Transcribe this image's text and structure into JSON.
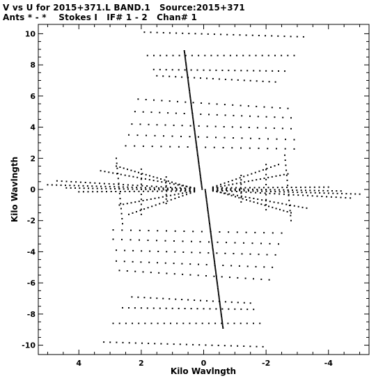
{
  "title_line1": "V vs U for 2015+371.L BAND.1   Source:2015+371",
  "title_line2": "Ants * - *    Stokes I   IF# 1 - 2   Chan# 1",
  "chart_data": {
    "type": "scatter",
    "xlabel": "Kilo Wavlngth",
    "ylabel": "Kilo Wavlngth",
    "xlim": [
      5.3,
      -5.3
    ],
    "ylim": [
      -10.6,
      10.6
    ],
    "x_reversed": true,
    "x_ticks": [
      4,
      2,
      0,
      -2,
      -4
    ],
    "y_ticks": [
      10,
      8,
      6,
      4,
      2,
      0,
      -2,
      -4,
      -6,
      -8,
      -10
    ],
    "grid": false,
    "legend": "none",
    "marker_color": "#000000",
    "tracks": [
      {
        "u0": 0.05,
        "v0": 0.02,
        "u1": 0.62,
        "v1": 8.9,
        "n": 95
      },
      {
        "u0": -0.05,
        "v0": -0.02,
        "u1": -0.62,
        "v1": -8.9,
        "n": 95
      },
      {
        "u0": 1.9,
        "v0": 10.1,
        "u1": -3.2,
        "v1": 9.8,
        "n": 26
      },
      {
        "u0": 1.8,
        "v0": 8.6,
        "u1": -2.9,
        "v1": 8.6,
        "n": 24
      },
      {
        "u0": 1.6,
        "v0": 7.7,
        "u1": -2.6,
        "v1": 7.6,
        "n": 22
      },
      {
        "u0": 1.5,
        "v0": 7.3,
        "u1": -2.3,
        "v1": 6.9,
        "n": 20
      },
      {
        "u0": -1.9,
        "v0": -10.1,
        "u1": 3.2,
        "v1": -9.8,
        "n": 26
      },
      {
        "u0": -1.8,
        "v0": -8.6,
        "u1": 2.9,
        "v1": -8.6,
        "n": 24
      },
      {
        "u0": -1.6,
        "v0": -7.7,
        "u1": 2.6,
        "v1": -7.6,
        "n": 22
      },
      {
        "u0": -1.5,
        "v0": -7.3,
        "u1": 2.3,
        "v1": -6.9,
        "n": 20
      },
      {
        "u0": 2.1,
        "v0": 5.8,
        "u1": -2.7,
        "v1": 5.2,
        "n": 20
      },
      {
        "u0": 2.2,
        "v0": 5.0,
        "u1": -2.8,
        "v1": 4.6,
        "n": 20
      },
      {
        "u0": 2.3,
        "v0": 4.2,
        "u1": -2.8,
        "v1": 3.9,
        "n": 20
      },
      {
        "u0": 2.4,
        "v0": 3.5,
        "u1": -2.9,
        "v1": 3.2,
        "n": 20
      },
      {
        "u0": 2.5,
        "v0": 2.8,
        "u1": -2.9,
        "v1": 2.6,
        "n": 20
      },
      {
        "u0": -2.1,
        "v0": -5.8,
        "u1": 2.7,
        "v1": -5.2,
        "n": 20
      },
      {
        "u0": -2.2,
        "v0": -5.0,
        "u1": 2.8,
        "v1": -4.6,
        "n": 20
      },
      {
        "u0": -2.3,
        "v0": -4.2,
        "u1": 2.8,
        "v1": -3.9,
        "n": 20
      },
      {
        "u0": -2.4,
        "v0": -3.5,
        "u1": 2.9,
        "v1": -3.2,
        "n": 20
      },
      {
        "u0": -2.5,
        "v0": -2.8,
        "u1": 2.9,
        "v1": -2.6,
        "n": 20
      },
      {
        "u0": 5.0,
        "v0": 0.3,
        "u1": 0.3,
        "v1": 0.02,
        "n": 34
      },
      {
        "u0": 4.7,
        "v0": 0.55,
        "u1": 0.3,
        "v1": 0.05,
        "n": 30
      },
      {
        "u0": 4.4,
        "v0": 0.1,
        "u1": 0.3,
        "v1": -0.05,
        "n": 30
      },
      {
        "u0": 4.0,
        "v0": -0.15,
        "u1": 0.3,
        "v1": -0.1,
        "n": 26
      },
      {
        "u0": 3.3,
        "v0": 1.2,
        "u1": 0.3,
        "v1": 0.1,
        "n": 24
      },
      {
        "u0": 2.8,
        "v0": 1.5,
        "u1": 0.3,
        "v1": 0.05,
        "n": 22
      },
      {
        "u0": 2.7,
        "v0": -1.0,
        "u1": 0.3,
        "v1": -0.1,
        "n": 20
      },
      {
        "u0": 2.4,
        "v0": -1.6,
        "u1": 0.3,
        "v1": -0.15,
        "n": 18
      },
      {
        "u0": -5.0,
        "v0": -0.3,
        "u1": -0.3,
        "v1": -0.02,
        "n": 34
      },
      {
        "u0": -4.7,
        "v0": -0.55,
        "u1": -0.3,
        "v1": -0.05,
        "n": 30
      },
      {
        "u0": -4.4,
        "v0": -0.1,
        "u1": -0.3,
        "v1": 0.05,
        "n": 30
      },
      {
        "u0": -4.0,
        "v0": 0.15,
        "u1": -0.3,
        "v1": 0.1,
        "n": 26
      },
      {
        "u0": -3.3,
        "v0": -1.2,
        "u1": -0.3,
        "v1": -0.1,
        "n": 24
      },
      {
        "u0": -2.8,
        "v0": -1.5,
        "u1": -0.3,
        "v1": -0.05,
        "n": 22
      },
      {
        "u0": -2.7,
        "v0": 1.0,
        "u1": -0.3,
        "v1": 0.1,
        "n": 20
      },
      {
        "u0": -2.4,
        "v0": 1.6,
        "u1": -0.3,
        "v1": 0.15,
        "n": 18
      },
      {
        "u0": 2.8,
        "v0": 2.0,
        "u1": 2.6,
        "v1": -2.2,
        "n": 14
      },
      {
        "u0": 2.0,
        "v0": 1.3,
        "u1": 2.0,
        "v1": -1.6,
        "n": 10
      },
      {
        "u0": 1.2,
        "v0": 0.8,
        "u1": 1.2,
        "v1": -0.9,
        "n": 7
      },
      {
        "u0": -2.8,
        "v0": -2.0,
        "u1": -2.6,
        "v1": 2.2,
        "n": 14
      },
      {
        "u0": -2.0,
        "v0": -1.3,
        "u1": -2.0,
        "v1": 1.6,
        "n": 10
      },
      {
        "u0": -1.2,
        "v0": -0.8,
        "u1": -1.2,
        "v1": 0.9,
        "n": 7
      }
    ]
  }
}
